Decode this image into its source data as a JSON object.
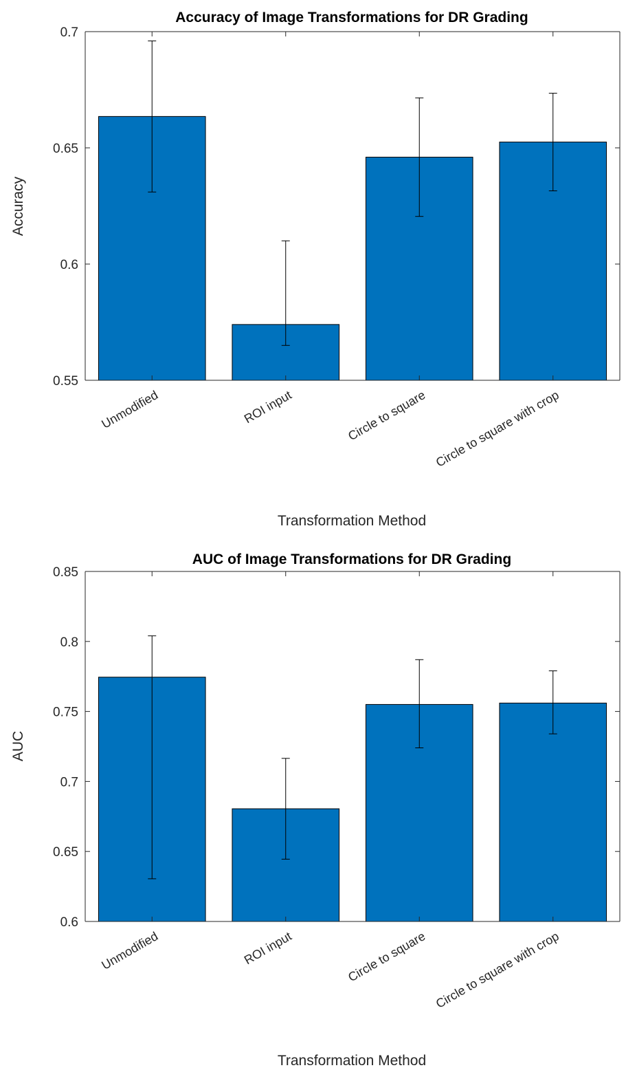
{
  "chart_data": [
    {
      "type": "bar",
      "title": "Accuracy of Image Transformations for DR Grading",
      "xlabel": "Transformation Method",
      "ylabel": "Accuracy",
      "categories": [
        "Unmodified",
        "ROI input",
        "Circle to square",
        "Circle to square with crop"
      ],
      "values": [
        0.6635,
        0.574,
        0.646,
        0.6525
      ],
      "error_high": [
        0.696,
        0.61,
        0.6715,
        0.6735
      ],
      "error_low": [
        0.631,
        0.565,
        0.6205,
        0.6315
      ],
      "ylim": [
        0.55,
        0.7
      ],
      "yticks": [
        "0.55",
        "0.6",
        "0.65",
        "0.7"
      ],
      "ytick_values": [
        0.55,
        0.6,
        0.65,
        0.7
      ],
      "color": "#0072BD",
      "grid": false
    },
    {
      "type": "bar",
      "title": "AUC of Image Transformations for DR Grading",
      "xlabel": "Transformation Method",
      "ylabel": "AUC",
      "categories": [
        "Unmodified",
        "ROI input",
        "Circle to square",
        "Circle to square with crop"
      ],
      "values": [
        0.7745,
        0.6805,
        0.755,
        0.756
      ],
      "error_high": [
        0.804,
        0.7165,
        0.787,
        0.779
      ],
      "error_low": [
        0.6305,
        0.6445,
        0.724,
        0.734
      ],
      "ylim": [
        0.6,
        0.85
      ],
      "yticks": [
        "0.6",
        "0.65",
        "0.7",
        "0.75",
        "0.8",
        "0.85"
      ],
      "ytick_values": [
        0.6,
        0.65,
        0.7,
        0.75,
        0.8,
        0.85
      ],
      "color": "#0072BD",
      "grid": false
    }
  ]
}
